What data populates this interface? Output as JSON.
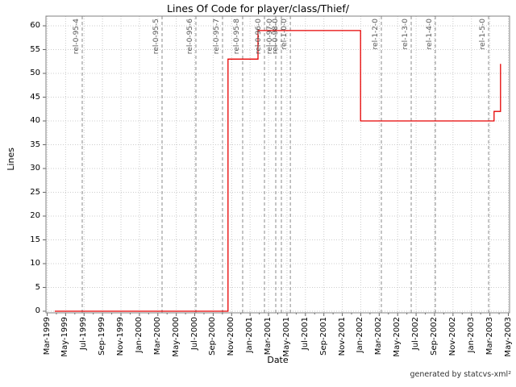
{
  "footer": "generated by statcvs-xml²",
  "chart_data": {
    "type": "line",
    "step": true,
    "title": "Lines Of Code for player/class/Thief/",
    "xlabel": "Date",
    "ylabel": "Lines",
    "ylim": [
      0,
      62
    ],
    "grid": true,
    "legend": "none",
    "y_ticks": [
      0,
      5,
      10,
      15,
      20,
      25,
      30,
      35,
      40,
      45,
      50,
      55,
      60
    ],
    "x_tick_labels": [
      "Mar-1999",
      "May-1999",
      "Jul-1999",
      "Sep-1999",
      "Nov-1999",
      "Jan-2000",
      "Mar-2000",
      "May-2000",
      "Jul-2000",
      "Sep-2000",
      "Nov-2000",
      "Jan-2001",
      "Mar-2001",
      "May-2001",
      "Jul-2001",
      "Sep-2001",
      "Nov-2001",
      "Jan-2002",
      "Mar-2002",
      "May-2002",
      "Jul-2002",
      "Sep-2002",
      "Nov-2002",
      "Jan-2003",
      "Mar-2003",
      "May-2003"
    ],
    "series": [
      {
        "name": "Lines Of Code",
        "color": "#e60000",
        "points": [
          {
            "x": 0.019,
            "y": 0,
            "date": "Apr-1999"
          },
          {
            "x": 0.394,
            "y": 0,
            "date": "Oct-2000"
          },
          {
            "x": 0.394,
            "y": 53,
            "date": "Oct-2000"
          },
          {
            "x": 0.459,
            "y": 53,
            "date": "Feb-2001"
          },
          {
            "x": 0.459,
            "y": 59,
            "date": "Feb-2001"
          },
          {
            "x": 0.681,
            "y": 59,
            "date": "Jan-2002"
          },
          {
            "x": 0.681,
            "y": 40,
            "date": "Jan-2002"
          },
          {
            "x": 0.97,
            "y": 40,
            "date": "Mar-2003"
          },
          {
            "x": 0.97,
            "y": 42,
            "date": "Mar-2003"
          },
          {
            "x": 0.984,
            "y": 42,
            "date": "Apr-2003"
          },
          {
            "x": 0.984,
            "y": 52,
            "date": "Apr-2003"
          }
        ]
      }
    ],
    "releases": [
      {
        "label": "rel-0-95-4",
        "x": 0.0785
      },
      {
        "label": "rel-0-95-5",
        "x": 0.2513
      },
      {
        "label": "rel-0-95-6",
        "x": 0.3246
      },
      {
        "label": "rel-0-95-7",
        "x": 0.3822
      },
      {
        "label": "rel-0-95-8",
        "x": 0.4258
      },
      {
        "label": "rel-0-96-0",
        "x": 0.473
      },
      {
        "label": "rel-0-97-0",
        "x": 0.4974
      },
      {
        "label": "rel-0-98-0",
        "x": 0.5096
      },
      {
        "label": "rel-1-0-0",
        "x": 0.529
      },
      {
        "label": "rel-1-2-0",
        "x": 0.726
      },
      {
        "label": "rel-1-3-0",
        "x": 0.7906
      },
      {
        "label": "rel-1-4-0",
        "x": 0.8429
      },
      {
        "label": "rel-1-5-0",
        "x": 0.9581
      }
    ],
    "colors": {
      "line": "#e60000",
      "grid": "#cccccc",
      "marker": "#8a8a8a",
      "border": "#808080",
      "tick": "#666666",
      "release_label": "#555555"
    }
  }
}
